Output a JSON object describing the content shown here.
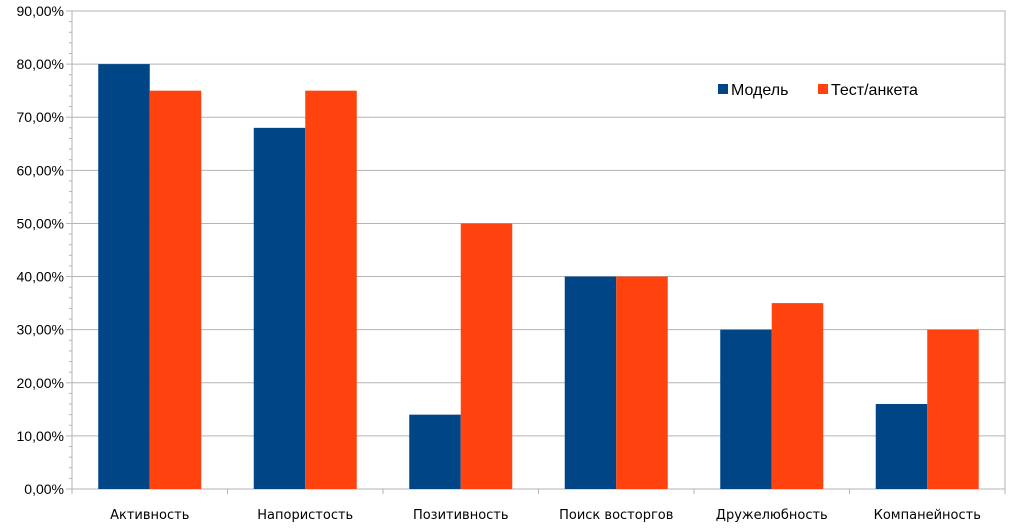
{
  "chart_data": {
    "type": "bar",
    "title": "",
    "xlabel": "",
    "ylabel": "",
    "categories": [
      "Активность",
      "Напористость",
      "Позитивность",
      "Поиск восторгов",
      "Дружелюбность",
      "Компанейность"
    ],
    "series": [
      {
        "name": "Модель",
        "color": "#004586",
        "values": [
          0.8,
          0.68,
          0.14,
          0.4,
          0.3,
          0.16
        ]
      },
      {
        "name": "Тест/анкета",
        "color": "#ff420e",
        "values": [
          0.75,
          0.75,
          0.5,
          0.4,
          0.35,
          0.3
        ]
      }
    ],
    "ylim": [
      0,
      0.9
    ],
    "yticks": [
      "0,00%",
      "10,00%",
      "20,00%",
      "30,00%",
      "40,00%",
      "50,00%",
      "60,00%",
      "70,00%",
      "80,00%",
      "90,00%"
    ],
    "grid": true,
    "legend_position": "top-right",
    "gridline_color": "#b3b3b3",
    "axis_color": "#b3b3b3"
  }
}
